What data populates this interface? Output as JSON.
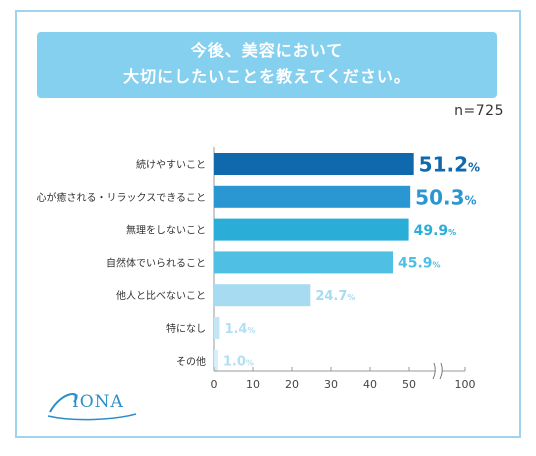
{
  "title": {
    "line1": "今後、美容において",
    "line2": "大切にしたいことを教えてください。"
  },
  "sample_size": "n=725",
  "logo": {
    "text": "IONA",
    "icon": "iona-swoosh-logo"
  },
  "colors": {
    "frame": "#9fd3ee",
    "title_bg": "#86d0ef",
    "bars": [
      "#1068ad",
      "#2a97d3",
      "#2aaed8",
      "#4fc0e4",
      "#a6dbf2",
      "#c3e6f6",
      "#d6eef9"
    ],
    "labels": [
      "#1068ad",
      "#2a97d3",
      "#2aaed8",
      "#4fc0e4",
      "#a6dbf2",
      "#b2dff3",
      "#b2dff3"
    ]
  },
  "chart_data": {
    "type": "bar",
    "orientation": "horizontal",
    "categories": [
      "続けやすいこと",
      "心が癒される・リラックスできること",
      "無理をしないこと",
      "自然体でいられること",
      "他人と比べないこと",
      "特になし",
      "その他"
    ],
    "values": [
      51.2,
      50.3,
      49.9,
      45.9,
      24.7,
      1.4,
      1.0
    ],
    "value_labels": [
      "51.2",
      "50.3",
      "49.9",
      "45.9",
      "24.7",
      "1.4",
      "1.0"
    ],
    "unit": "%",
    "x_ticks": [
      "0",
      "10",
      "20",
      "30",
      "40",
      "50",
      "100"
    ],
    "x_tick_values": [
      0,
      10,
      20,
      30,
      40,
      50,
      100
    ],
    "axis_break": "between 50 and 100",
    "grid": false
  }
}
